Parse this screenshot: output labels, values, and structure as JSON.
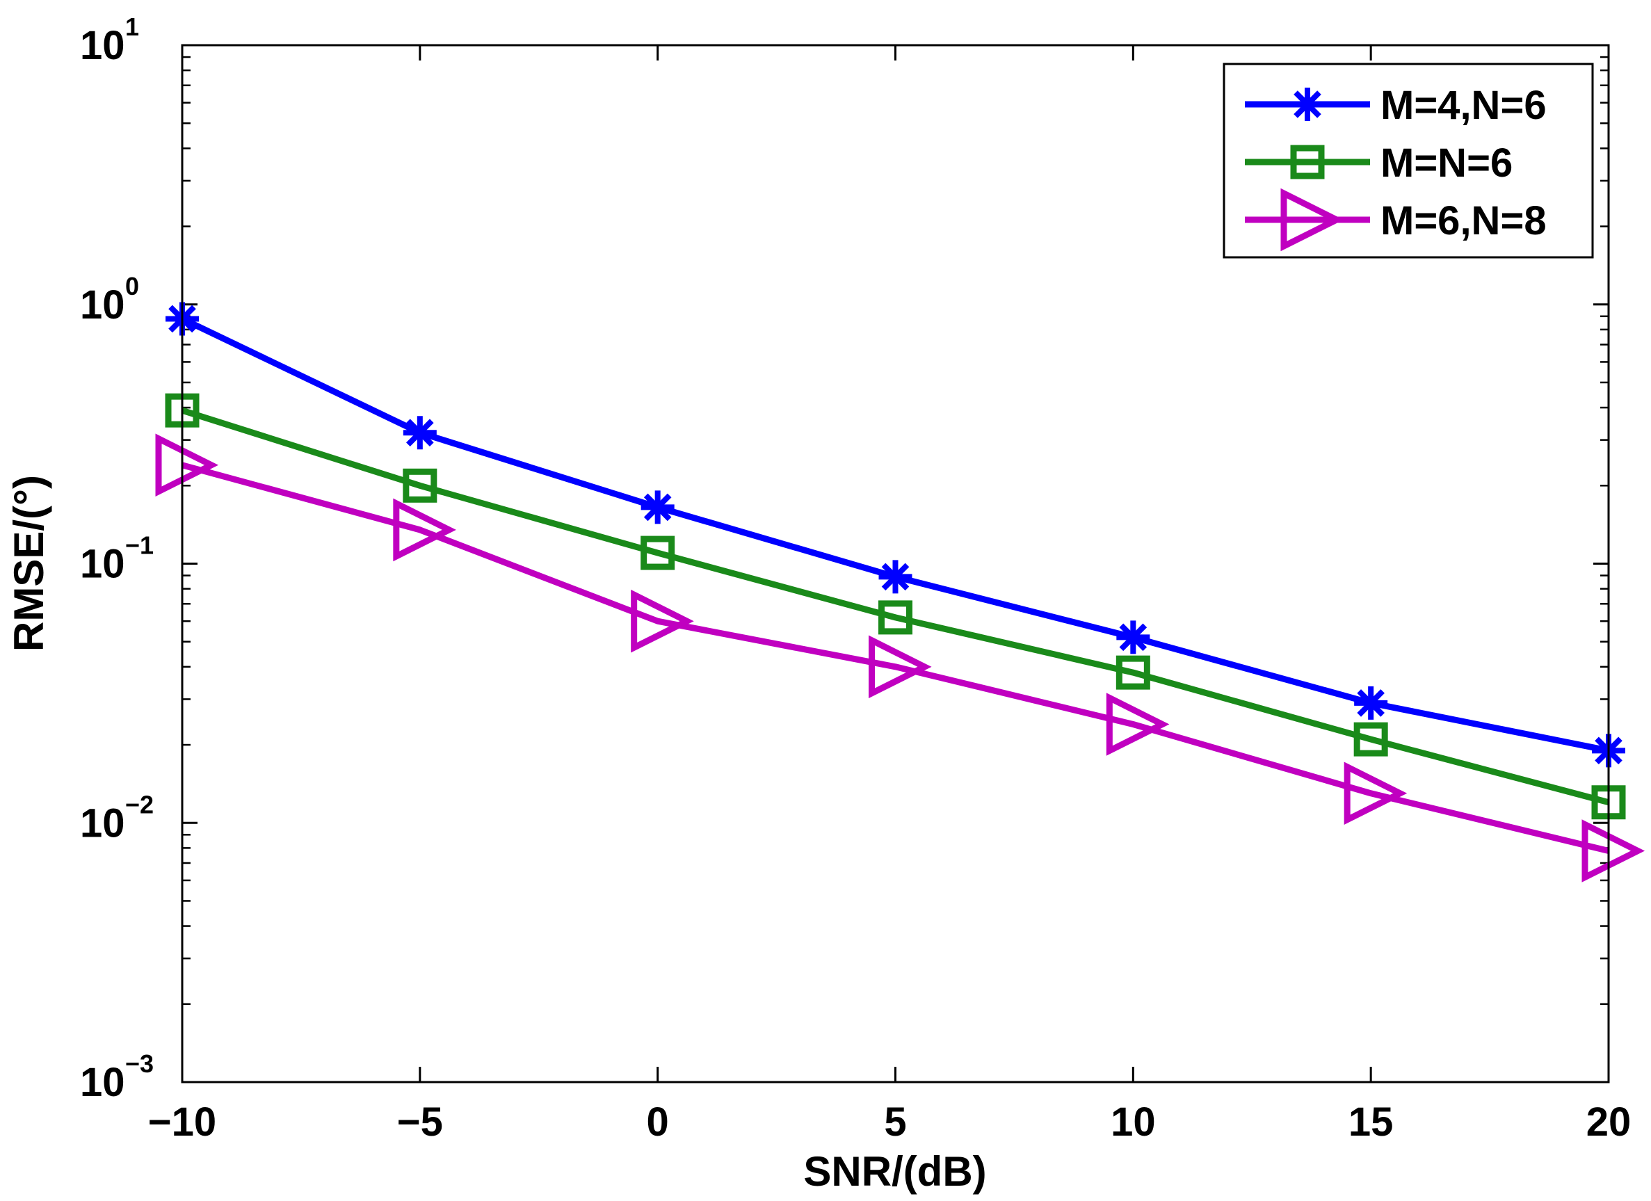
{
  "chart_data": {
    "type": "line",
    "xlabel": "SNR/(dB)",
    "ylabel": "RMSE/(°)",
    "yscale": "log",
    "xlim": [
      -10,
      20
    ],
    "ylim": [
      0.001,
      10
    ],
    "x": [
      -10,
      -5,
      0,
      5,
      10,
      15,
      20
    ],
    "x_tick_labels": [
      "−10",
      "−5",
      "0",
      "5",
      "10",
      "15",
      "20"
    ],
    "y_ticks": [
      {
        "base": "10",
        "exp": "1"
      },
      {
        "base": "10",
        "exp": "0"
      },
      {
        "base": "10",
        "exp": "−1"
      },
      {
        "base": "10",
        "exp": "−2"
      },
      {
        "base": "10",
        "exp": "−3"
      }
    ],
    "legend_position": "top-right",
    "series": [
      {
        "name": "M=4,N=6",
        "marker": "asterisk",
        "color": "#0000ff",
        "values": [
          0.88,
          0.32,
          0.165,
          0.089,
          0.052,
          0.029,
          0.019
        ]
      },
      {
        "name": "M=N=6",
        "marker": "square",
        "color": "#1a8a1a",
        "values": [
          0.39,
          0.2,
          0.11,
          0.062,
          0.038,
          0.021,
          0.012
        ]
      },
      {
        "name": "M=6,N=8",
        "marker": "triangle-right",
        "color": "#c000c0",
        "values": [
          0.24,
          0.135,
          0.06,
          0.04,
          0.024,
          0.013,
          0.0078
        ]
      }
    ]
  }
}
